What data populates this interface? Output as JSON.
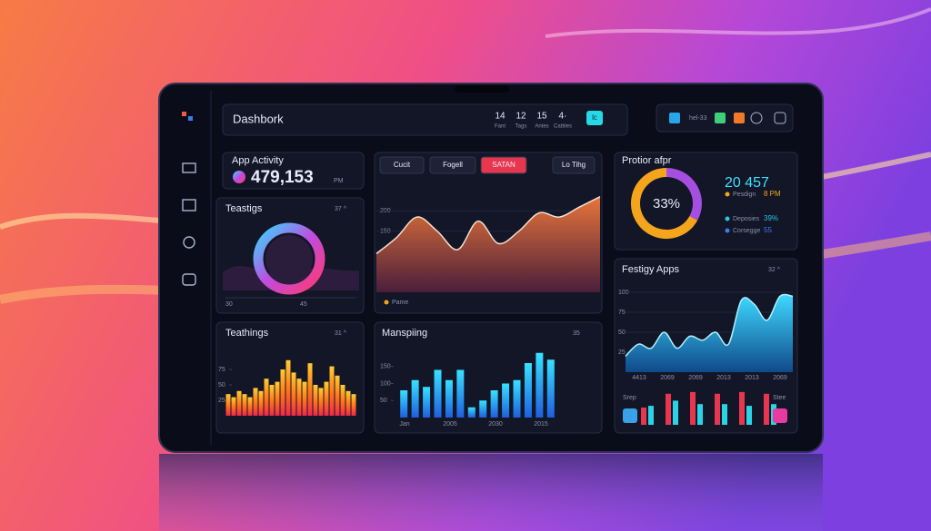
{
  "header": {
    "title": "Dashbork",
    "stats": [
      {
        "value": "14",
        "label": "Fant"
      },
      {
        "value": "12",
        "label": "Tags"
      },
      {
        "value": "15",
        "label": "Antes"
      },
      {
        "value": "4·",
        "label": "Cattiies"
      }
    ],
    "button": "lc",
    "tools": "hel-33"
  },
  "activity": {
    "title": "App Activity",
    "value": "479,153",
    "unit": "PM"
  },
  "ring": {
    "title": "Teastigs",
    "badge": "37 ^",
    "axis": [
      "30",
      "45"
    ]
  },
  "main": {
    "tabs": [
      "Cucit",
      "Fogell",
      "SATAN",
      "Lo Tihg"
    ],
    "legend": "Pame",
    "ylim": [
      0,
      250
    ],
    "yticks": [
      100,
      150,
      200
    ],
    "values": [
      95,
      135,
      185,
      150,
      105,
      175,
      120,
      150,
      195,
      185,
      210,
      235
    ]
  },
  "profile": {
    "title": "Protior afpr",
    "big": "20 457",
    "donut": {
      "label": "33%",
      "values": [
        33,
        67
      ],
      "colors": [
        "#a44fe0",
        "#f5a51c"
      ]
    },
    "legend": [
      {
        "name": "Pesdign",
        "value": "8 PM",
        "color": "#f5a51c"
      },
      {
        "name": "Deposies",
        "value": "39%",
        "color": "#29c6e6"
      },
      {
        "name": "Corsegge",
        "value": "55",
        "color": "#3a7cf0"
      }
    ]
  },
  "teathings": {
    "title": "Teathings",
    "badge": "31 ^",
    "ylim": [
      0,
      100
    ],
    "yticks": [
      25,
      50,
      75
    ],
    "values": [
      35,
      30,
      40,
      35,
      30,
      45,
      40,
      60,
      50,
      55,
      75,
      90,
      70,
      60,
      55,
      85,
      50,
      45,
      55,
      80,
      65,
      50,
      40,
      35
    ]
  },
  "manspiing": {
    "title": "Manspiing",
    "badge": "35",
    "ylim": [
      0,
      200
    ],
    "yticks": [
      50,
      100,
      150
    ],
    "xlabels": [
      "Jan",
      "2005",
      "2030",
      "2015"
    ],
    "values": [
      80,
      110,
      90,
      140,
      110,
      140,
      30,
      50,
      80,
      100,
      110,
      160,
      190,
      170
    ]
  },
  "festigy": {
    "title": "Festigy Apps",
    "badge": "32 ^",
    "ylim": [
      0,
      100
    ],
    "yticks": [
      25,
      50,
      75,
      100
    ],
    "xlabels": [
      "4413",
      "2069",
      "2069",
      "2013",
      "2013",
      "2069"
    ],
    "values": [
      20,
      35,
      30,
      50,
      30,
      45,
      40,
      50,
      35,
      90,
      85,
      65,
      95,
      95
    ],
    "bars": {
      "labels": [
        "Srep",
        "Stee"
      ],
      "series": [
        {
          "color": "#e8364f",
          "values": [
            50,
            90,
            95,
            90,
            95,
            90
          ]
        },
        {
          "color": "#2ad4e6",
          "values": [
            55,
            70,
            60,
            60,
            55,
            60
          ]
        }
      ]
    }
  }
}
